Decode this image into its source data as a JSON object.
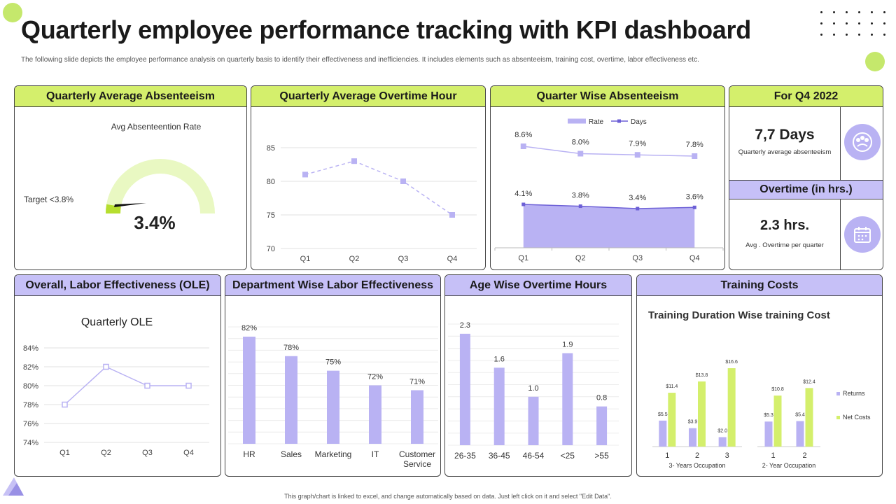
{
  "page": {
    "title": "Quarterly employee performance tracking with KPI dashboard",
    "subtitle": "The following slide depicts the employee performance analysis on quarterly basis to identify their effectiveness and inefficiencies. It includes elements such as  absenteeism, training cost, overtime, labor effectiveness etc.",
    "footer": "This graph/chart is linked to excel, and change automatically based on data. Just left click on it and select \"Edit Data\".",
    "colors": {
      "green": "#d4ef6c",
      "purple": "#c6c0f7",
      "bar": "#b9b2f3",
      "line": "#6c5fd6",
      "accentGreen": "#c5e86c"
    }
  },
  "panels": {
    "absenteeism": {
      "header": "Quarterly Average Absenteeism"
    },
    "overtime": {
      "header": "Quarterly Average Overtime Hour"
    },
    "quarter_absent": {
      "header": "Quarter Wise Absenteeism"
    },
    "q4": {
      "header": "For Q4 2022",
      "days_value": "7,7 Days",
      "days_label": "Quarterly average absenteeism",
      "days_icon": "people-chat-icon",
      "overtime_header": "Overtime (in hrs.)",
      "overtime_value": "2.3 hrs.",
      "overtime_label": "Avg . Overtime per quarter",
      "overtime_icon": "calendar-icon"
    },
    "ole": {
      "header": "Overall, Labor Effectiveness  (OLE)"
    },
    "dept": {
      "header": "Department Wise Labor Effectiveness"
    },
    "age": {
      "header": "Age Wise Overtime Hours"
    },
    "training": {
      "header": "Training Costs"
    }
  },
  "chart_data": [
    {
      "id": "gauge",
      "type": "gauge",
      "title": "Avg Absenteention Rate",
      "target_label": "Target  <3.8%",
      "value": 3.4,
      "value_label": "3.4%"
    },
    {
      "id": "overtime",
      "type": "line",
      "categories": [
        "Q1",
        "Q2",
        "Q3",
        "Q4"
      ],
      "values": [
        81,
        83,
        80,
        75
      ],
      "ylim": [
        70,
        85
      ],
      "yticks": [
        "70",
        "75",
        "80",
        "85"
      ],
      "grid": true
    },
    {
      "id": "quarter_absent",
      "type": "line",
      "categories": [
        "Q1",
        "Q2",
        "Q3",
        "Q4"
      ],
      "legend": [
        "Rate",
        "Days"
      ],
      "legend_position": "top",
      "series": [
        {
          "name": "Rate",
          "values": [
            8.6,
            8.0,
            7.9,
            7.8
          ],
          "labels": [
            "8.6%",
            "8.0%",
            "7.9%",
            "7.8%"
          ]
        },
        {
          "name": "Days",
          "values": [
            4.1,
            3.8,
            3.4,
            3.6
          ],
          "labels": [
            "4.1%",
            "3.8%",
            "3.4%",
            "3.6%"
          ]
        }
      ]
    },
    {
      "id": "ole",
      "type": "line",
      "title": "Quarterly OLE",
      "categories": [
        "Q1",
        "Q2",
        "Q3",
        "Q4"
      ],
      "values": [
        78,
        82,
        80,
        80
      ],
      "ylim": [
        74,
        84
      ],
      "yticks": [
        "74%",
        "76%",
        "78%",
        "80%",
        "82%",
        "84%"
      ],
      "grid": true
    },
    {
      "id": "dept",
      "type": "bar",
      "categories": [
        "HR",
        "Sales",
        "Marketing",
        "IT",
        "Customer Service"
      ],
      "values": [
        82,
        78,
        75,
        72,
        71
      ],
      "labels": [
        "82%",
        "78%",
        "75%",
        "72%",
        "71%"
      ],
      "ylim": [
        60,
        84
      ],
      "grid": true
    },
    {
      "id": "age",
      "type": "bar",
      "categories": [
        "26-35",
        "36-45",
        "46-54",
        "<25",
        ">55"
      ],
      "values": [
        2.3,
        1.6,
        1.0,
        1.9,
        0.8
      ],
      "labels": [
        "2.3",
        "1.6",
        "1.0",
        "1.9",
        "0.8"
      ],
      "ylim": [
        0,
        2.5
      ],
      "grid": true
    },
    {
      "id": "training",
      "type": "bar",
      "title": "Training Duration Wise training Cost",
      "legend": [
        "Returns",
        "Net Costs"
      ],
      "legend_position": "right",
      "groups": [
        {
          "name": "3- Years Occupation",
          "categories": [
            "1",
            "2",
            "3"
          ],
          "series": [
            {
              "name": "Returns",
              "values": [
                5.5,
                3.9,
                2.0
              ],
              "labels": [
                "$5.5",
                "$3.9",
                "$2.0"
              ]
            },
            {
              "name": "Net Costs",
              "values": [
                11.4,
                13.8,
                16.6
              ],
              "labels": [
                "$11.4",
                "$13.8",
                "$16.6"
              ]
            }
          ]
        },
        {
          "name": "2- Year Occupation",
          "categories": [
            "1",
            "2"
          ],
          "series": [
            {
              "name": "Returns",
              "values": [
                5.3,
                5.4
              ],
              "labels": [
                "$5.3",
                "$5.4"
              ]
            },
            {
              "name": "Net Costs",
              "values": [
                10.8,
                12.4
              ],
              "labels": [
                "$10.8",
                "$12.4"
              ]
            }
          ]
        }
      ],
      "ylim": [
        0,
        18
      ]
    }
  ]
}
